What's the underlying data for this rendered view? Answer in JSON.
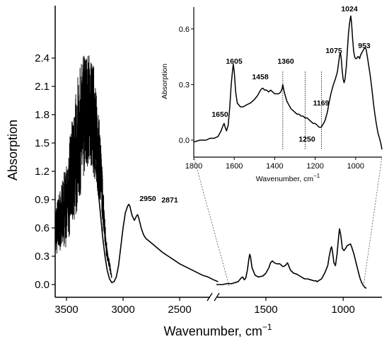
{
  "chart_data": [
    {
      "type": "line",
      "name": "main",
      "xlabel": "Wavenumber, cm",
      "xlabel_sup": "−1",
      "ylabel": "Absorption",
      "broken_x_axis": true,
      "x_segments": [
        [
          3600,
          2150
        ],
        [
          1820,
          850
        ]
      ],
      "ylim": [
        -0.1,
        2.5
      ],
      "x_ticks": [
        "3500",
        "3000",
        "2500",
        "1500",
        "1000"
      ],
      "y_ticks": [
        "0.0",
        "0.3",
        "0.6",
        "0.9",
        "1.2",
        "1.5",
        "1.8",
        "2.1",
        "2.4"
      ],
      "peak_labels": [
        "2950",
        "2871"
      ],
      "series": [
        {
          "x": [
            3600,
            3580,
            3560,
            3540,
            3520,
            3500,
            3480,
            3460,
            3440,
            3420,
            3400,
            3380,
            3360,
            3340,
            3320,
            3300,
            3280,
            3260,
            3240,
            3220,
            3200,
            3180,
            3160,
            3140,
            3120,
            3100,
            3080,
            3060,
            3040,
            3020,
            3000,
            2980,
            2960,
            2950,
            2940,
            2920,
            2900,
            2880,
            2871,
            2860,
            2840,
            2820,
            2800,
            2750,
            2700,
            2650,
            2600,
            2550,
            2500,
            2450,
            2400,
            2350,
            2300,
            2250,
            2200,
            2160
          ],
          "y": [
            0.52,
            0.55,
            0.6,
            0.66,
            0.72,
            0.8,
            0.88,
            0.98,
            1.08,
            1.18,
            1.28,
            1.38,
            1.48,
            1.55,
            1.6,
            1.58,
            1.55,
            1.4,
            1.22,
            1.0,
            0.75,
            0.5,
            0.3,
            0.15,
            0.06,
            0.02,
            0.03,
            0.08,
            0.2,
            0.4,
            0.6,
            0.76,
            0.83,
            0.85,
            0.83,
            0.73,
            0.68,
            0.73,
            0.74,
            0.7,
            0.6,
            0.53,
            0.49,
            0.44,
            0.39,
            0.34,
            0.3,
            0.26,
            0.22,
            0.19,
            0.16,
            0.13,
            0.1,
            0.08,
            0.05,
            0.03
          ]
        },
        {
          "x": [
            1820,
            1780,
            1750,
            1720,
            1700,
            1680,
            1660,
            1650,
            1640,
            1630,
            1620,
            1610,
            1605,
            1600,
            1590,
            1570,
            1550,
            1520,
            1500,
            1480,
            1470,
            1458,
            1445,
            1430,
            1410,
            1390,
            1375,
            1360,
            1350,
            1340,
            1320,
            1300,
            1280,
            1260,
            1250,
            1230,
            1210,
            1190,
            1175,
            1169,
            1160,
            1140,
            1120,
            1100,
            1090,
            1080,
            1075,
            1070,
            1060,
            1050,
            1040,
            1030,
            1024,
            1015,
            1005,
            995,
            985,
            975,
            965,
            953,
            945,
            930,
            915,
            900,
            890,
            880,
            870,
            860,
            850
          ],
          "y": [
            0.0,
            0.0,
            0.01,
            0.01,
            0.02,
            0.03,
            0.07,
            0.08,
            0.05,
            0.07,
            0.15,
            0.27,
            0.32,
            0.3,
            0.18,
            0.1,
            0.08,
            0.09,
            0.12,
            0.18,
            0.23,
            0.25,
            0.23,
            0.22,
            0.22,
            0.19,
            0.2,
            0.23,
            0.19,
            0.15,
            0.12,
            0.11,
            0.09,
            0.07,
            0.06,
            0.06,
            0.05,
            0.04,
            0.04,
            0.03,
            0.04,
            0.06,
            0.12,
            0.2,
            0.3,
            0.38,
            0.4,
            0.36,
            0.23,
            0.2,
            0.32,
            0.5,
            0.59,
            0.52,
            0.38,
            0.36,
            0.38,
            0.41,
            0.42,
            0.43,
            0.4,
            0.32,
            0.22,
            0.12,
            0.06,
            0.02,
            -0.01,
            -0.03,
            -0.04
          ]
        }
      ]
    },
    {
      "type": "line",
      "name": "inset",
      "xlabel": "Wavenumber, cm",
      "xlabel_sup": "−1",
      "ylabel": "Absorption",
      "xlim": [
        1800,
        870
      ],
      "ylim": [
        -0.08,
        0.7
      ],
      "x_ticks": [
        "1800",
        "1600",
        "1400",
        "1200",
        "1000"
      ],
      "y_ticks": [
        "0.0",
        "0.3",
        "0.6"
      ],
      "peak_labels": [
        "1650",
        "1605",
        "1458",
        "1360",
        "1250",
        "1169",
        "1075",
        "1024",
        "953"
      ],
      "series": [
        {
          "x": [
            1800,
            1770,
            1740,
            1720,
            1700,
            1680,
            1665,
            1655,
            1650,
            1645,
            1638,
            1630,
            1622,
            1615,
            1608,
            1605,
            1600,
            1593,
            1585,
            1570,
            1555,
            1540,
            1520,
            1500,
            1485,
            1470,
            1462,
            1458,
            1450,
            1440,
            1430,
            1420,
            1410,
            1400,
            1390,
            1380,
            1370,
            1363,
            1360,
            1355,
            1348,
            1340,
            1330,
            1320,
            1310,
            1300,
            1290,
            1280,
            1270,
            1260,
            1250,
            1240,
            1230,
            1220,
            1210,
            1200,
            1190,
            1180,
            1172,
            1169,
            1165,
            1158,
            1150,
            1140,
            1130,
            1120,
            1110,
            1100,
            1090,
            1085,
            1080,
            1077,
            1075,
            1071,
            1067,
            1062,
            1057,
            1052,
            1046,
            1040,
            1035,
            1030,
            1026,
            1024,
            1020,
            1015,
            1010,
            1005,
            1000,
            995,
            990,
            985,
            980,
            975,
            970,
            965,
            960,
            953,
            948,
            942,
            935,
            928,
            920,
            912,
            905,
            898,
            890,
            882,
            875,
            870
          ],
          "y": [
            -0.01,
            0.0,
            0.0,
            0.01,
            0.01,
            0.02,
            0.05,
            0.08,
            0.09,
            0.07,
            0.05,
            0.08,
            0.18,
            0.3,
            0.38,
            0.41,
            0.37,
            0.26,
            0.2,
            0.18,
            0.18,
            0.19,
            0.2,
            0.22,
            0.24,
            0.27,
            0.28,
            0.28,
            0.27,
            0.27,
            0.26,
            0.27,
            0.26,
            0.25,
            0.25,
            0.25,
            0.26,
            0.28,
            0.3,
            0.27,
            0.24,
            0.21,
            0.19,
            0.17,
            0.16,
            0.15,
            0.14,
            0.14,
            0.13,
            0.13,
            0.12,
            0.12,
            0.11,
            0.1,
            0.09,
            0.09,
            0.08,
            0.07,
            0.07,
            0.07,
            0.08,
            0.09,
            0.11,
            0.15,
            0.21,
            0.26,
            0.3,
            0.33,
            0.37,
            0.41,
            0.45,
            0.47,
            0.47,
            0.44,
            0.38,
            0.33,
            0.31,
            0.33,
            0.4,
            0.5,
            0.58,
            0.63,
            0.66,
            0.67,
            0.63,
            0.55,
            0.48,
            0.45,
            0.44,
            0.44,
            0.45,
            0.45,
            0.44,
            0.46,
            0.47,
            0.48,
            0.49,
            0.5,
            0.49,
            0.45,
            0.4,
            0.35,
            0.28,
            0.2,
            0.14,
            0.09,
            0.04,
            0.01,
            -0.02,
            -0.05
          ]
        }
      ]
    }
  ]
}
